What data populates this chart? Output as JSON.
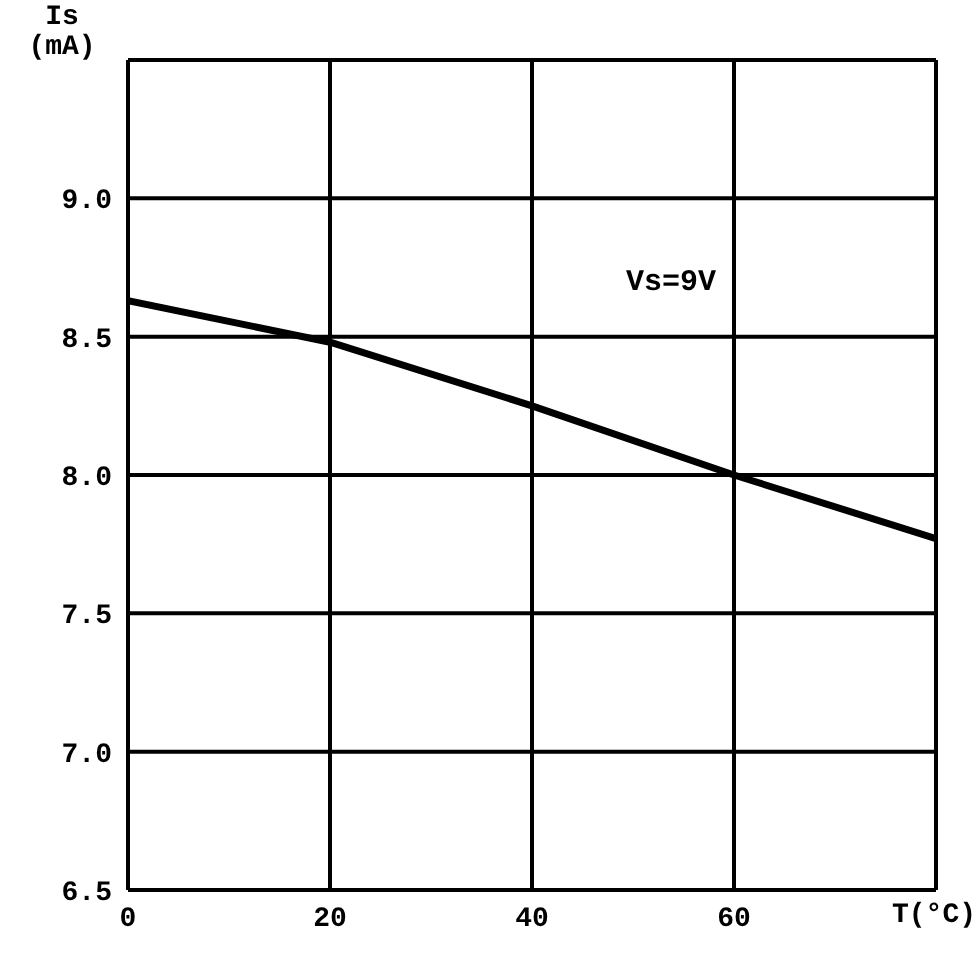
{
  "chart_data": {
    "type": "line",
    "xlabel": "T(°C)",
    "ylabel": "Is (mA)",
    "annotations": [
      "Vs=9V"
    ],
    "x": [
      0,
      20,
      40,
      60,
      80
    ],
    "series": [
      {
        "color": "#000000",
        "values": [
          8.63,
          8.48,
          8.25,
          8.0,
          7.77
        ]
      }
    ],
    "xlim": [
      0,
      80
    ],
    "xticks": [
      0,
      20,
      40,
      60,
      {
        "value": 80,
        "label": null
      }
    ],
    "ylim": [
      6.5,
      9.5
    ],
    "yticks": [
      6.5,
      {
        "value": 7,
        "label": "7.0"
      },
      7.5,
      {
        "value": 8,
        "label": "8.0"
      },
      8.5,
      {
        "value": 9,
        "label": "9.0"
      },
      {
        "value": 9.5,
        "label": null
      }
    ],
    "grid": true,
    "marker": "none",
    "line_style": "solid"
  }
}
